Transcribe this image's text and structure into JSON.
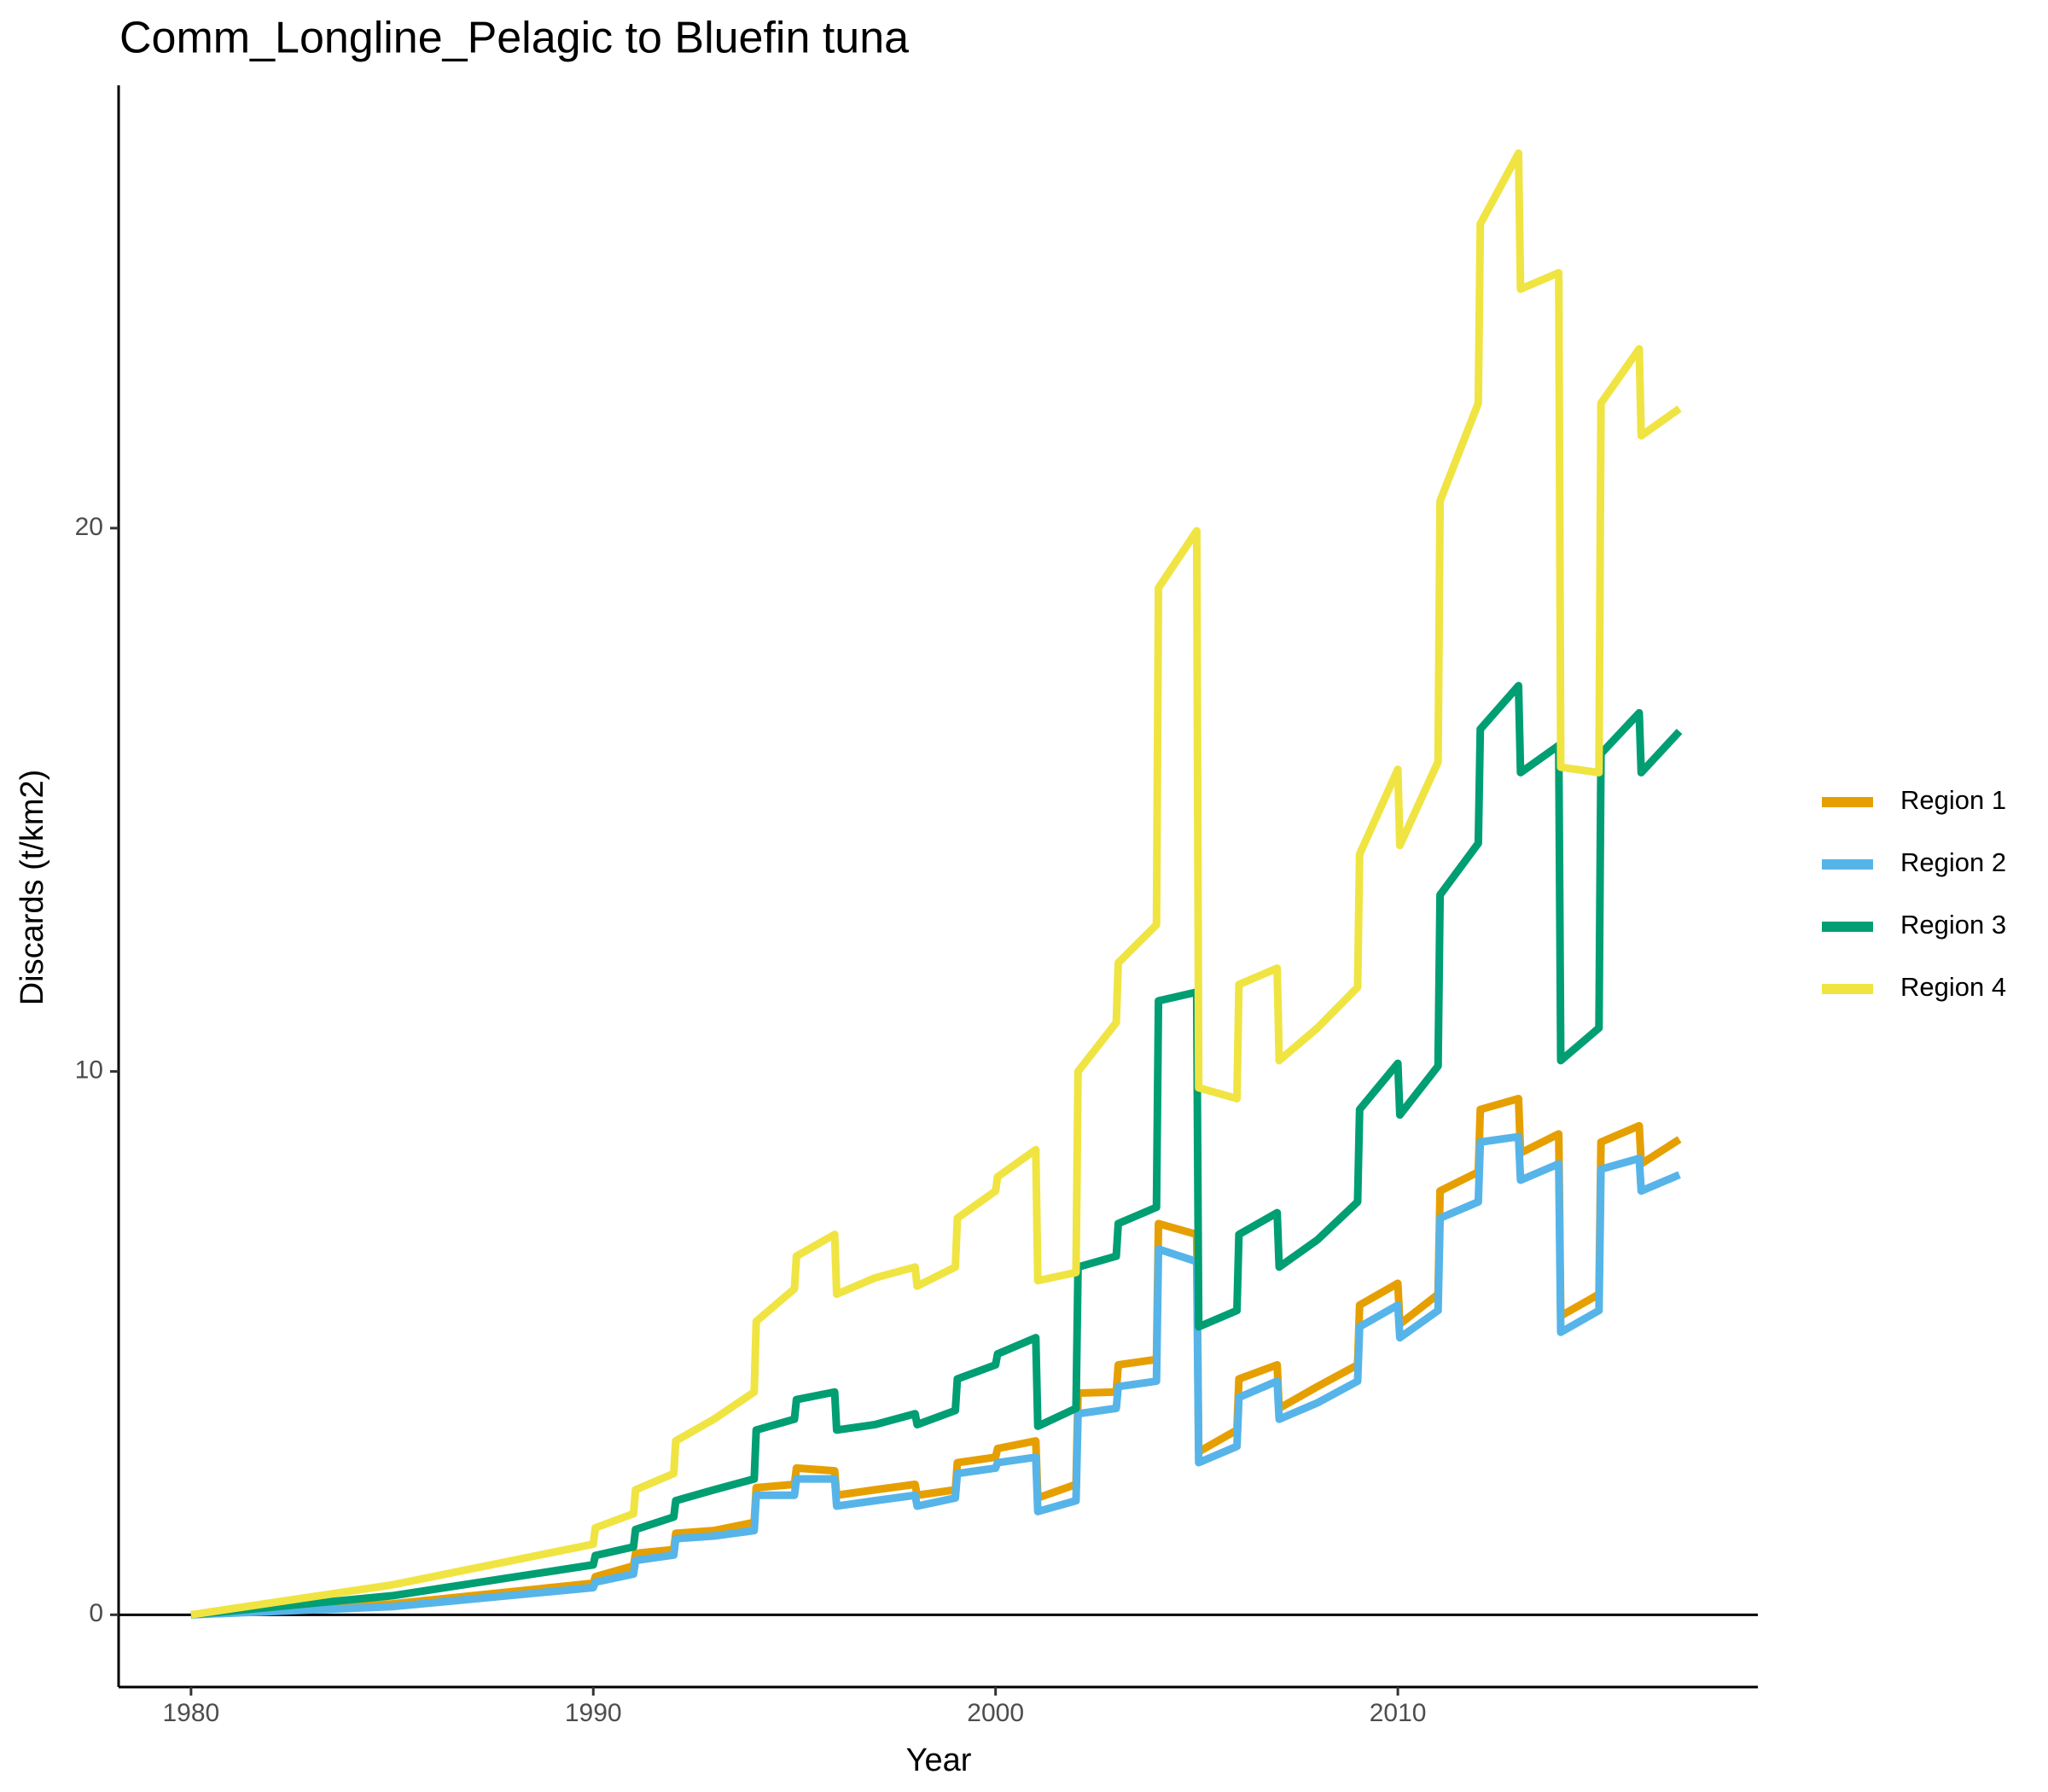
{
  "chart_data": {
    "type": "line",
    "title": "Comm_Longline_Pelagic to Bluefin tuna",
    "xlabel": "Year",
    "ylabel": "Discards (t/km2)",
    "xlim": [
      1978.2,
      2018.95
    ],
    "ylim": [
      -1.33,
      28.15
    ],
    "xticks": [
      1980,
      1990,
      2000,
      2010
    ],
    "yticks": [
      0,
      10,
      20
    ],
    "hline": 0,
    "legend": "right",
    "x": [
      1980,
      1985,
      1990,
      1990.05,
      1991,
      1991.05,
      1992,
      1992.05,
      1993,
      1994,
      1994.05,
      1995,
      1995.05,
      1996,
      1996.05,
      1997,
      1998,
      1998.05,
      1999,
      1999.05,
      2000,
      2000.05,
      2001,
      2001.05,
      2002,
      2002.05,
      2003,
      2003.05,
      2004,
      2004.05,
      2005,
      2005.05,
      2006,
      2006.05,
      2007,
      2007.05,
      2008,
      2009,
      2009.05,
      2010,
      2010.05,
      2011,
      2011.05,
      2012,
      2012.05,
      2013,
      2013.05,
      2014,
      2014.05,
      2015,
      2015.05,
      2016,
      2016.05,
      2017
    ],
    "series": [
      {
        "name": "Region 1",
        "color": "#E69F00",
        "values": [
          0,
          0.2,
          0.58,
          0.7,
          0.9,
          1.13,
          1.2,
          1.5,
          1.55,
          1.7,
          2.34,
          2.4,
          2.7,
          2.65,
          2.2,
          2.3,
          2.4,
          2.2,
          2.3,
          2.8,
          2.9,
          3.06,
          3.2,
          2.15,
          2.4,
          4.08,
          4.1,
          4.6,
          4.7,
          7.2,
          7.0,
          3.0,
          3.4,
          4.34,
          4.6,
          3.8,
          4.2,
          4.6,
          5.7,
          6.1,
          5.35,
          5.9,
          7.8,
          8.15,
          9.3,
          9.5,
          8.5,
          8.85,
          5.5,
          5.9,
          8.7,
          9.0,
          8.3,
          8.75
        ]
      },
      {
        "name": "Region 2",
        "color": "#56B4E9",
        "values": [
          0,
          0.15,
          0.5,
          0.6,
          0.75,
          1.0,
          1.1,
          1.4,
          1.45,
          1.55,
          2.2,
          2.2,
          2.5,
          2.5,
          2.0,
          2.1,
          2.2,
          2.0,
          2.15,
          2.6,
          2.7,
          2.8,
          2.9,
          1.9,
          2.1,
          3.7,
          3.8,
          4.2,
          4.3,
          6.73,
          6.5,
          2.8,
          3.1,
          4.0,
          4.3,
          3.6,
          3.9,
          4.3,
          5.3,
          5.7,
          5.1,
          5.6,
          7.3,
          7.6,
          8.7,
          8.8,
          8.0,
          8.3,
          5.2,
          5.6,
          8.2,
          8.4,
          7.8,
          8.1
        ]
      },
      {
        "name": "Region 3",
        "color": "#009E73",
        "values": [
          0,
          0.35,
          0.92,
          1.09,
          1.25,
          1.57,
          1.8,
          2.1,
          2.3,
          2.5,
          3.4,
          3.6,
          3.96,
          4.1,
          3.4,
          3.5,
          3.7,
          3.5,
          3.76,
          4.34,
          4.6,
          4.8,
          5.1,
          3.47,
          3.8,
          6.4,
          6.6,
          7.2,
          7.5,
          11.3,
          11.46,
          5.3,
          5.6,
          7.0,
          7.4,
          6.4,
          6.9,
          7.6,
          9.3,
          10.15,
          9.2,
          10.1,
          13.25,
          14.2,
          16.3,
          17.1,
          15.5,
          16.0,
          10.2,
          10.8,
          15.85,
          16.6,
          15.5,
          16.26
        ]
      },
      {
        "name": "Region 4",
        "color": "#F0E442",
        "values": [
          0,
          0.55,
          1.3,
          1.6,
          1.86,
          2.3,
          2.6,
          3.2,
          3.6,
          4.1,
          5.4,
          6.0,
          6.6,
          7.0,
          5.9,
          6.2,
          6.4,
          6.05,
          6.4,
          7.3,
          7.8,
          8.06,
          8.56,
          6.15,
          6.3,
          10.0,
          10.9,
          12.0,
          12.7,
          18.9,
          19.95,
          9.7,
          9.5,
          11.6,
          11.9,
          10.2,
          10.8,
          11.55,
          14.0,
          15.56,
          14.16,
          15.7,
          20.5,
          22.3,
          25.6,
          26.9,
          24.4,
          24.7,
          15.6,
          15.5,
          22.3,
          23.3,
          21.7,
          22.2
        ]
      }
    ]
  }
}
